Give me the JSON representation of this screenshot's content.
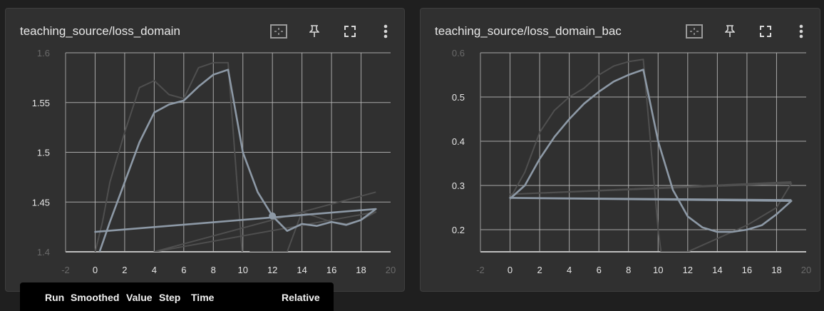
{
  "colors": {
    "smoothed": "#8d99a6",
    "raw": "#4f4f4f",
    "grid": "#bdbdbd",
    "tick": "#e6e6e6"
  },
  "panels": [
    {
      "title": "teaching_source/loss_domain",
      "toolbar": [
        {
          "name": "fit-domain-icon"
        },
        {
          "name": "pin-icon"
        },
        {
          "name": "fullscreen-icon"
        },
        {
          "name": "more-vert-icon"
        }
      ]
    },
    {
      "title": "teaching_source/loss_domain_bac",
      "toolbar": [
        {
          "name": "fit-domain-icon"
        },
        {
          "name": "pin-icon"
        },
        {
          "name": "fullscreen-icon"
        },
        {
          "name": "more-vert-icon"
        }
      ]
    }
  ],
  "tooltip": {
    "headers": [
      "Run",
      "Smoothed",
      "Value",
      "Step",
      "Time",
      "Relative"
    ]
  },
  "chart_data": [
    {
      "type": "line",
      "title": "teaching_source/loss_domain",
      "xlim": [
        -2,
        20
      ],
      "ylim": [
        1.4,
        1.6
      ],
      "xticks": [
        "-2",
        "0",
        "2",
        "4",
        "6",
        "8",
        "10",
        "12",
        "14",
        "16",
        "18",
        "20"
      ],
      "yticks": [
        "1.4",
        "1.45",
        "1.5",
        "1.55",
        "1.6"
      ],
      "grid": true,
      "series": [
        {
          "role": "raw",
          "x": [
            0,
            0.5,
            1,
            2,
            3,
            4,
            5,
            6,
            7,
            8,
            9,
            10,
            10.5,
            11.5,
            13,
            14,
            15,
            16,
            17,
            18,
            19,
            4,
            19
          ],
          "y": [
            1.4,
            1.43,
            1.47,
            1.52,
            1.565,
            1.572,
            1.558,
            1.554,
            1.585,
            1.59,
            1.59,
            1.39,
            1.4,
            1.4,
            1.4,
            1.44,
            1.435,
            1.43,
            1.428,
            1.432,
            1.44,
            1.4,
            1.46
          ]
        },
        {
          "role": "smoothed",
          "x": [
            0.3,
            1,
            2,
            3,
            4,
            5,
            6,
            7,
            8,
            9,
            10,
            11,
            12,
            13,
            14,
            15,
            16,
            17,
            18,
            19,
            0,
            19
          ],
          "y": [
            1.4,
            1.43,
            1.47,
            1.51,
            1.54,
            1.548,
            1.552,
            1.566,
            1.578,
            1.583,
            1.5,
            1.46,
            1.436,
            1.421,
            1.428,
            1.426,
            1.43,
            1.427,
            1.432,
            1.443,
            1.42,
            1.443
          ]
        }
      ],
      "highlight_point": {
        "x": 12,
        "y": 1.436
      }
    },
    {
      "type": "line",
      "title": "teaching_source/loss_domain_bac",
      "xlim": [
        -2,
        20
      ],
      "ylim": [
        0.15,
        0.6
      ],
      "xticks": [
        "-2",
        "0",
        "2",
        "4",
        "6",
        "8",
        "10",
        "12",
        "14",
        "16",
        "18",
        "20"
      ],
      "yticks": [
        "0.2",
        "0.3",
        "0.4",
        "0.5",
        "0.6"
      ],
      "grid": true,
      "series": [
        {
          "role": "raw",
          "x": [
            0,
            1,
            2,
            3,
            4,
            5,
            6,
            7,
            8,
            9,
            10,
            10.2,
            12,
            13,
            14,
            15,
            16,
            17,
            18,
            19,
            0,
            19
          ],
          "y": [
            0.27,
            0.33,
            0.42,
            0.47,
            0.5,
            0.52,
            0.55,
            0.57,
            0.58,
            0.585,
            0.2,
            0.15,
            0.15,
            0.165,
            0.18,
            0.195,
            0.21,
            0.23,
            0.25,
            0.305,
            0.28,
            0.308
          ]
        },
        {
          "role": "smoothed",
          "x": [
            0,
            1,
            2,
            3,
            4,
            5,
            6,
            7,
            8,
            9,
            10,
            11,
            12,
            13,
            14,
            15,
            16,
            17,
            18,
            19,
            0,
            19
          ],
          "y": [
            0.27,
            0.3,
            0.36,
            0.41,
            0.45,
            0.485,
            0.512,
            0.535,
            0.55,
            0.562,
            0.4,
            0.29,
            0.23,
            0.205,
            0.195,
            0.195,
            0.2,
            0.21,
            0.235,
            0.265,
            0.272,
            0.267
          ]
        }
      ]
    }
  ]
}
